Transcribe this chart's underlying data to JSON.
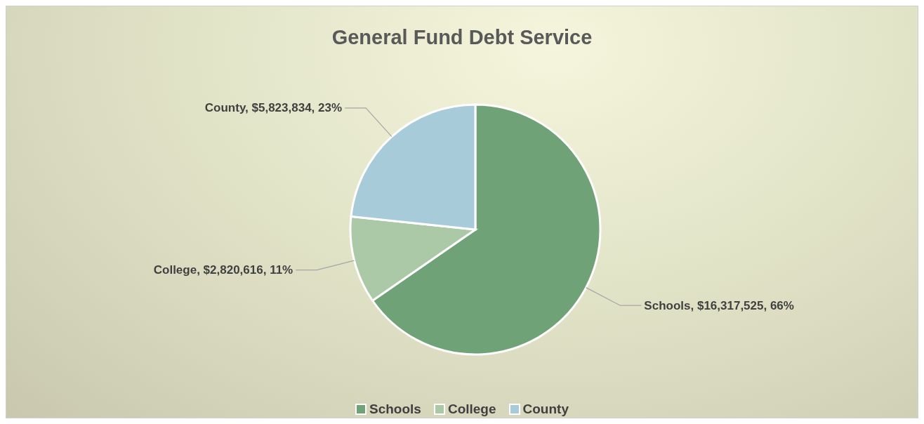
{
  "chart_data": {
    "type": "pie",
    "title": "General Fund Debt Service",
    "categories": [
      "Schools",
      "College",
      "County"
    ],
    "values": [
      16317525,
      2820616,
      5823834
    ],
    "colors": [
      "#70a277",
      "#abc9a7",
      "#a8cbd9"
    ],
    "value_labels": [
      "Schools, $16,317,525, 66%",
      "College, $2,820,616, 11%",
      "County, $5,823,834, 23%"
    ],
    "legend": "bottom"
  }
}
